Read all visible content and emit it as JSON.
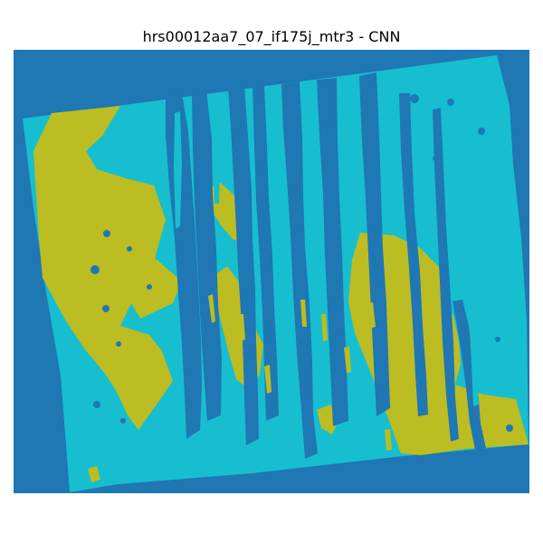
{
  "title": "hrs00012aa7_07_if175j_mtr3 - CNN",
  "colors": {
    "background_class": "#1f77b4",
    "cyan_class": "#17becf",
    "olive_class": "#bcbd22"
  },
  "image_content": "classification map with three colors"
}
